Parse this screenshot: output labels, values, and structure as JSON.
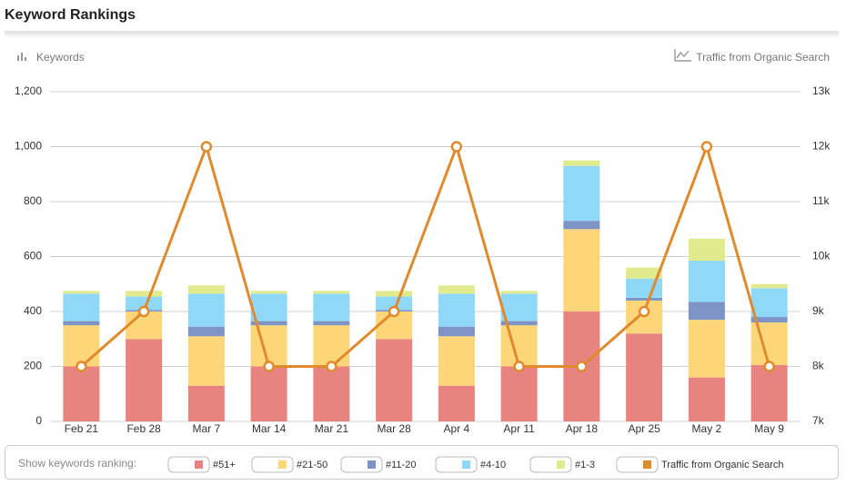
{
  "header": {
    "title": "Keyword Rankings"
  },
  "chart_data": {
    "type": "bar",
    "stacked": true,
    "y_axis_label": "Keywords",
    "y2_axis_label": "Traffic from Organic Search",
    "legend_title": "Show keywords ranking:",
    "categories": [
      "Feb 21",
      "Feb 28",
      "Mar 7",
      "Mar 14",
      "Mar 21",
      "Mar 28",
      "Apr 4",
      "Apr 11",
      "Apr 18",
      "Apr 25",
      "May 2",
      "May 9"
    ],
    "series": [
      {
        "name": "#51+",
        "color": "#e8837f",
        "values": [
          200,
          300,
          130,
          200,
          200,
          300,
          130,
          200,
          400,
          320,
          160,
          205
        ]
      },
      {
        "name": "#21-50",
        "color": "#fcd679",
        "values": [
          150,
          100,
          180,
          150,
          150,
          100,
          180,
          150,
          300,
          120,
          210,
          155
        ]
      },
      {
        "name": "#11-20",
        "color": "#7e93c6",
        "values": [
          15,
          5,
          35,
          15,
          15,
          5,
          35,
          15,
          30,
          10,
          65,
          20
        ]
      },
      {
        "name": "#4-10",
        "color": "#8fd8f8",
        "values": [
          100,
          50,
          120,
          100,
          100,
          50,
          120,
          100,
          200,
          70,
          150,
          105
        ]
      },
      {
        "name": "#1-3",
        "color": "#e2ea8e",
        "values": [
          10,
          20,
          30,
          10,
          10,
          20,
          30,
          10,
          20,
          40,
          80,
          15
        ]
      },
      {
        "name": "Traffic from Organic Search",
        "type": "line",
        "axis": "y2",
        "color": "#e08a2e",
        "values": [
          8000,
          9000,
          12000,
          8000,
          8000,
          9000,
          12000,
          8000,
          8000,
          9000,
          12000,
          8000
        ]
      }
    ],
    "ylim": [
      0,
      1200
    ],
    "yticks": [
      0,
      200,
      400,
      600,
      800,
      {
        "value": 1000,
        "label": "1,000"
      },
      {
        "value": 1200,
        "label": "1,200"
      }
    ],
    "y2lim": [
      7000,
      13000
    ],
    "y2ticks": [
      {
        "value": 7000,
        "label": "7k"
      },
      {
        "value": 8000,
        "label": "8k"
      },
      {
        "value": 9000,
        "label": "9k"
      },
      {
        "value": 10000,
        "label": "10k"
      },
      {
        "value": 11000,
        "label": "11k"
      },
      {
        "value": 12000,
        "label": "12k"
      },
      {
        "value": 13000,
        "label": "13k"
      }
    ],
    "grid": true,
    "legend": "bottom"
  }
}
